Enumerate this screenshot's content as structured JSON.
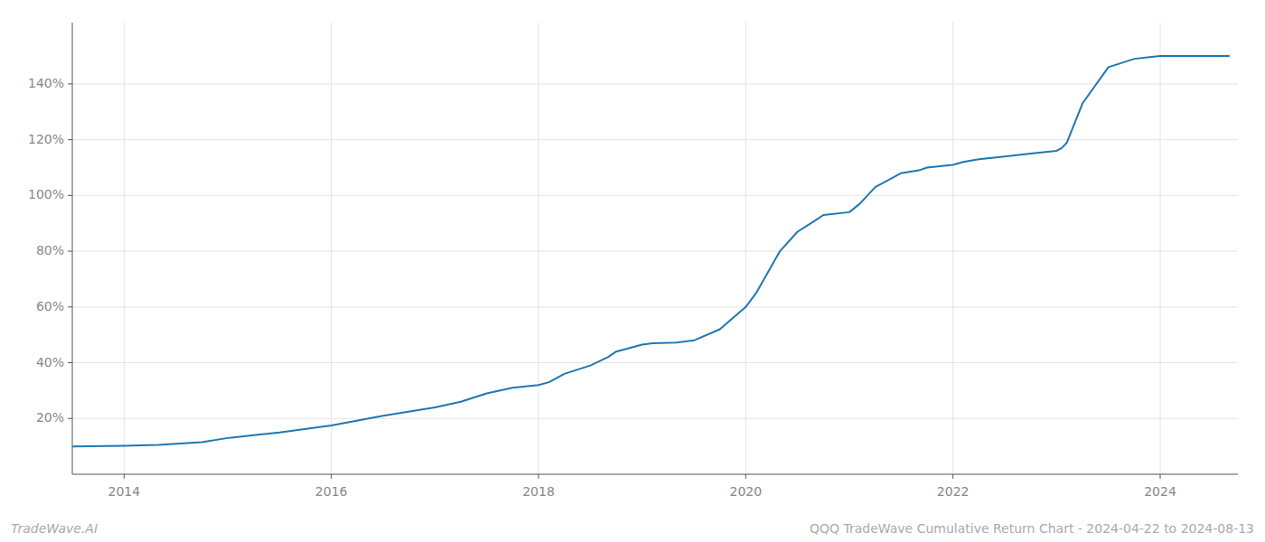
{
  "chart_data": {
    "type": "line",
    "x": [
      2013.5,
      2014.0,
      2014.33,
      2014.75,
      2015.0,
      2015.25,
      2015.5,
      2016.0,
      2016.5,
      2017.0,
      2017.25,
      2017.5,
      2017.75,
      2018.0,
      2018.1,
      2018.25,
      2018.5,
      2018.67,
      2018.75,
      2019.0,
      2019.1,
      2019.33,
      2019.5,
      2019.75,
      2020.0,
      2020.1,
      2020.33,
      2020.5,
      2020.67,
      2020.75,
      2021.0,
      2021.1,
      2021.25,
      2021.5,
      2021.67,
      2021.75,
      2022.0,
      2022.1,
      2022.25,
      2022.5,
      2022.75,
      2023.0,
      2023.05,
      2023.1,
      2023.25,
      2023.5,
      2023.75,
      2024.0,
      2024.33,
      2024.67
    ],
    "values": [
      10,
      10.2,
      10.5,
      11.5,
      13,
      14,
      15,
      17.5,
      21,
      24,
      26,
      29,
      31,
      32,
      33,
      36,
      39,
      42,
      44,
      46.5,
      47.0,
      47.2,
      48,
      52,
      60,
      65,
      80,
      87,
      91,
      93,
      94,
      97,
      103,
      108,
      109,
      110,
      111,
      112,
      113,
      114,
      115,
      116,
      117,
      119,
      133,
      146,
      149,
      150,
      150,
      150
    ],
    "color": "#1f77b4",
    "xlim": [
      2013.5,
      2024.75
    ],
    "ylim": [
      0,
      162
    ],
    "xticks": [
      2014,
      2016,
      2018,
      2020,
      2022,
      2024
    ],
    "yticks": [
      {
        "value": 20,
        "label": "20%"
      },
      {
        "value": 40,
        "label": "40%"
      },
      {
        "value": 60,
        "label": "60%"
      },
      {
        "value": 80,
        "label": "80%"
      },
      {
        "value": 100,
        "label": "100%"
      },
      {
        "value": 120,
        "label": "120%"
      },
      {
        "value": 140,
        "label": "140%"
      }
    ],
    "grid": true,
    "annotations": [
      "TradeWave.AI",
      "QQQ TradeWave Cumulative Return Chart - 2024-04-22 to 2024-08-13"
    ]
  }
}
